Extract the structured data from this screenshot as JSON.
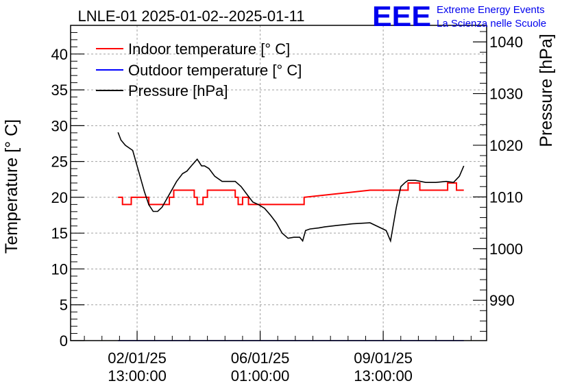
{
  "chart_data": {
    "type": "line",
    "title": "LNLE-01 2025-01-02--2025-01-11",
    "ylabel_left": "Temperature [° C]",
    "ylabel_right": "Pressure [hPa]",
    "ylim_left": [
      0,
      44
    ],
    "ylim_right": [
      982.2,
      1043.2
    ],
    "yticks_left": [
      "0",
      "5",
      "10",
      "15",
      "20",
      "25",
      "30",
      "35",
      "40"
    ],
    "yticks_right": [
      "990",
      "1000",
      "1010",
      "1020",
      "1030",
      "1040"
    ],
    "yticks_left_values": [
      0,
      5,
      10,
      15,
      20,
      25,
      30,
      35,
      40
    ],
    "yticks_right_values": [
      990,
      1000,
      1010,
      1020,
      1030,
      1040
    ],
    "xlim_hours": [
      -32.4,
      251.6
    ],
    "x_unit": "hours since 2025-01-02 00:00",
    "xticks": [
      {
        "hours": 13,
        "line1": "02/01/25",
        "line2": "13:00:00"
      },
      {
        "hours": 97,
        "line1": "06/01/25",
        "line2": "01:00:00"
      },
      {
        "hours": 181,
        "line1": "09/01/25",
        "line2": "13:00:00"
      }
    ],
    "grid": true,
    "legend_position": "top-left",
    "series": [
      {
        "name": "Indoor temperature [° C]",
        "color": "#ff0000",
        "axis": "left",
        "x": [
          0,
          3,
          3,
          9,
          9,
          12,
          12,
          21,
          21,
          35,
          35,
          38,
          38,
          52,
          52,
          54,
          54,
          58,
          58,
          61,
          61,
          80,
          80,
          82,
          82,
          85,
          85,
          89,
          89,
          127,
          127,
          172,
          172,
          198,
          198,
          200,
          200,
          206,
          206,
          225,
          225,
          231,
          231,
          233,
          233,
          236
        ],
        "y": [
          20,
          20,
          19,
          19,
          20,
          20,
          20,
          20,
          19,
          19,
          20,
          20,
          21,
          21,
          20,
          20,
          19,
          19,
          20,
          20,
          21,
          21,
          20,
          20,
          19,
          19,
          20,
          20,
          19,
          19,
          20,
          21,
          21,
          21,
          22,
          22,
          22,
          22,
          21,
          21,
          22,
          22,
          21,
          21,
          21,
          21
        ]
      },
      {
        "name": "Outdoor temperature [° C]",
        "color": "#0000ff",
        "axis": "left",
        "x": [
          0,
          236
        ],
        "y": [
          0,
          0
        ]
      },
      {
        "name": "Pressure [hPa]",
        "color": "#000000",
        "axis": "right",
        "x": [
          0,
          2,
          5,
          10,
          14,
          18,
          21,
          24,
          27,
          30,
          33,
          36,
          40,
          44,
          47,
          50,
          54,
          57,
          59,
          62,
          66,
          71,
          76,
          80,
          84,
          88,
          92,
          96,
          100,
          104,
          108,
          112,
          116,
          120,
          124,
          126,
          128,
          131,
          137,
          141,
          150,
          160,
          172,
          183,
          186,
          190,
          193,
          196,
          198,
          203,
          210,
          217,
          224,
          229,
          233,
          236
        ],
        "y": [
          1022.5,
          1021,
          1020,
          1019,
          1015,
          1011,
          1008.5,
          1007.2,
          1007.2,
          1008,
          1009.5,
          1011,
          1013,
          1014.5,
          1015,
          1016,
          1017.3,
          1016,
          1016,
          1015.5,
          1014,
          1013,
          1013,
          1013,
          1012,
          1010.5,
          1009,
          1008.5,
          1007.8,
          1006.5,
          1005,
          1003,
          1002,
          1002.2,
          1002.2,
          1001.5,
          1003.5,
          1003.8,
          1004,
          1004.2,
          1004.5,
          1004.8,
          1005,
          1003.5,
          1001.5,
          1008,
          1012,
          1012.8,
          1013.2,
          1013.2,
          1012.8,
          1012.8,
          1013,
          1012.8,
          1014,
          1016
        ]
      }
    ]
  },
  "brand": {
    "logo_text": "EEE",
    "line1": "Extreme Energy Events",
    "line2": "La Scienza nelle Scuole",
    "color": "#0000ee"
  }
}
